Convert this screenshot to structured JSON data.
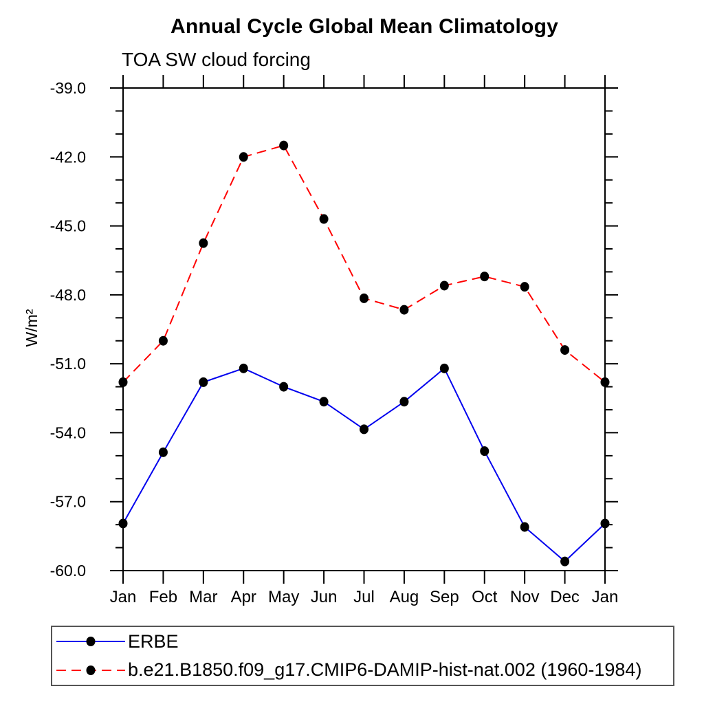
{
  "title": "Annual Cycle Global Mean Climatology",
  "subtitle": "TOA SW cloud forcing",
  "chart_data": {
    "type": "line",
    "x_categories": [
      "Jan",
      "Feb",
      "Mar",
      "Apr",
      "May",
      "Jun",
      "Jul",
      "Aug",
      "Sep",
      "Oct",
      "Nov",
      "Dec",
      "Jan"
    ],
    "ylabel": "W/m²",
    "ylim": [
      -60.0,
      -39.0
    ],
    "y_major_ticks": [
      -39.0,
      -42.0,
      -45.0,
      -48.0,
      -51.0,
      -54.0,
      -57.0,
      -60.0
    ],
    "y_tick_labels": [
      "-39.0",
      "-42.0",
      "-45.0",
      "-48.0",
      "-51.0",
      "-54.0",
      "-57.0",
      "-60.0"
    ],
    "y_minor_step": 1.0,
    "grid": false,
    "legend_position": "bottom-left-box",
    "marker_color": "#000000",
    "axis_color": "#000000",
    "series": [
      {
        "name": "ERBE",
        "color": "#0000ee",
        "style": "solid",
        "marker": "filled-circle",
        "values": [
          -57.95,
          -54.85,
          -51.8,
          -51.2,
          -52.0,
          -52.65,
          -53.85,
          -52.65,
          -51.2,
          -54.8,
          -58.1,
          -59.6,
          -57.95
        ]
      },
      {
        "name": "b.e21.B1850.f09_g17.CMIP6-DAMIP-hist-nat.002 (1960-1984)",
        "color": "#ff0000",
        "style": "dashed",
        "marker": "filled-circle",
        "values": [
          -51.8,
          -50.0,
          -45.75,
          -42.0,
          -41.5,
          -44.7,
          -48.15,
          -48.65,
          -47.6,
          -47.2,
          -47.65,
          -50.4,
          -51.8
        ]
      }
    ]
  }
}
